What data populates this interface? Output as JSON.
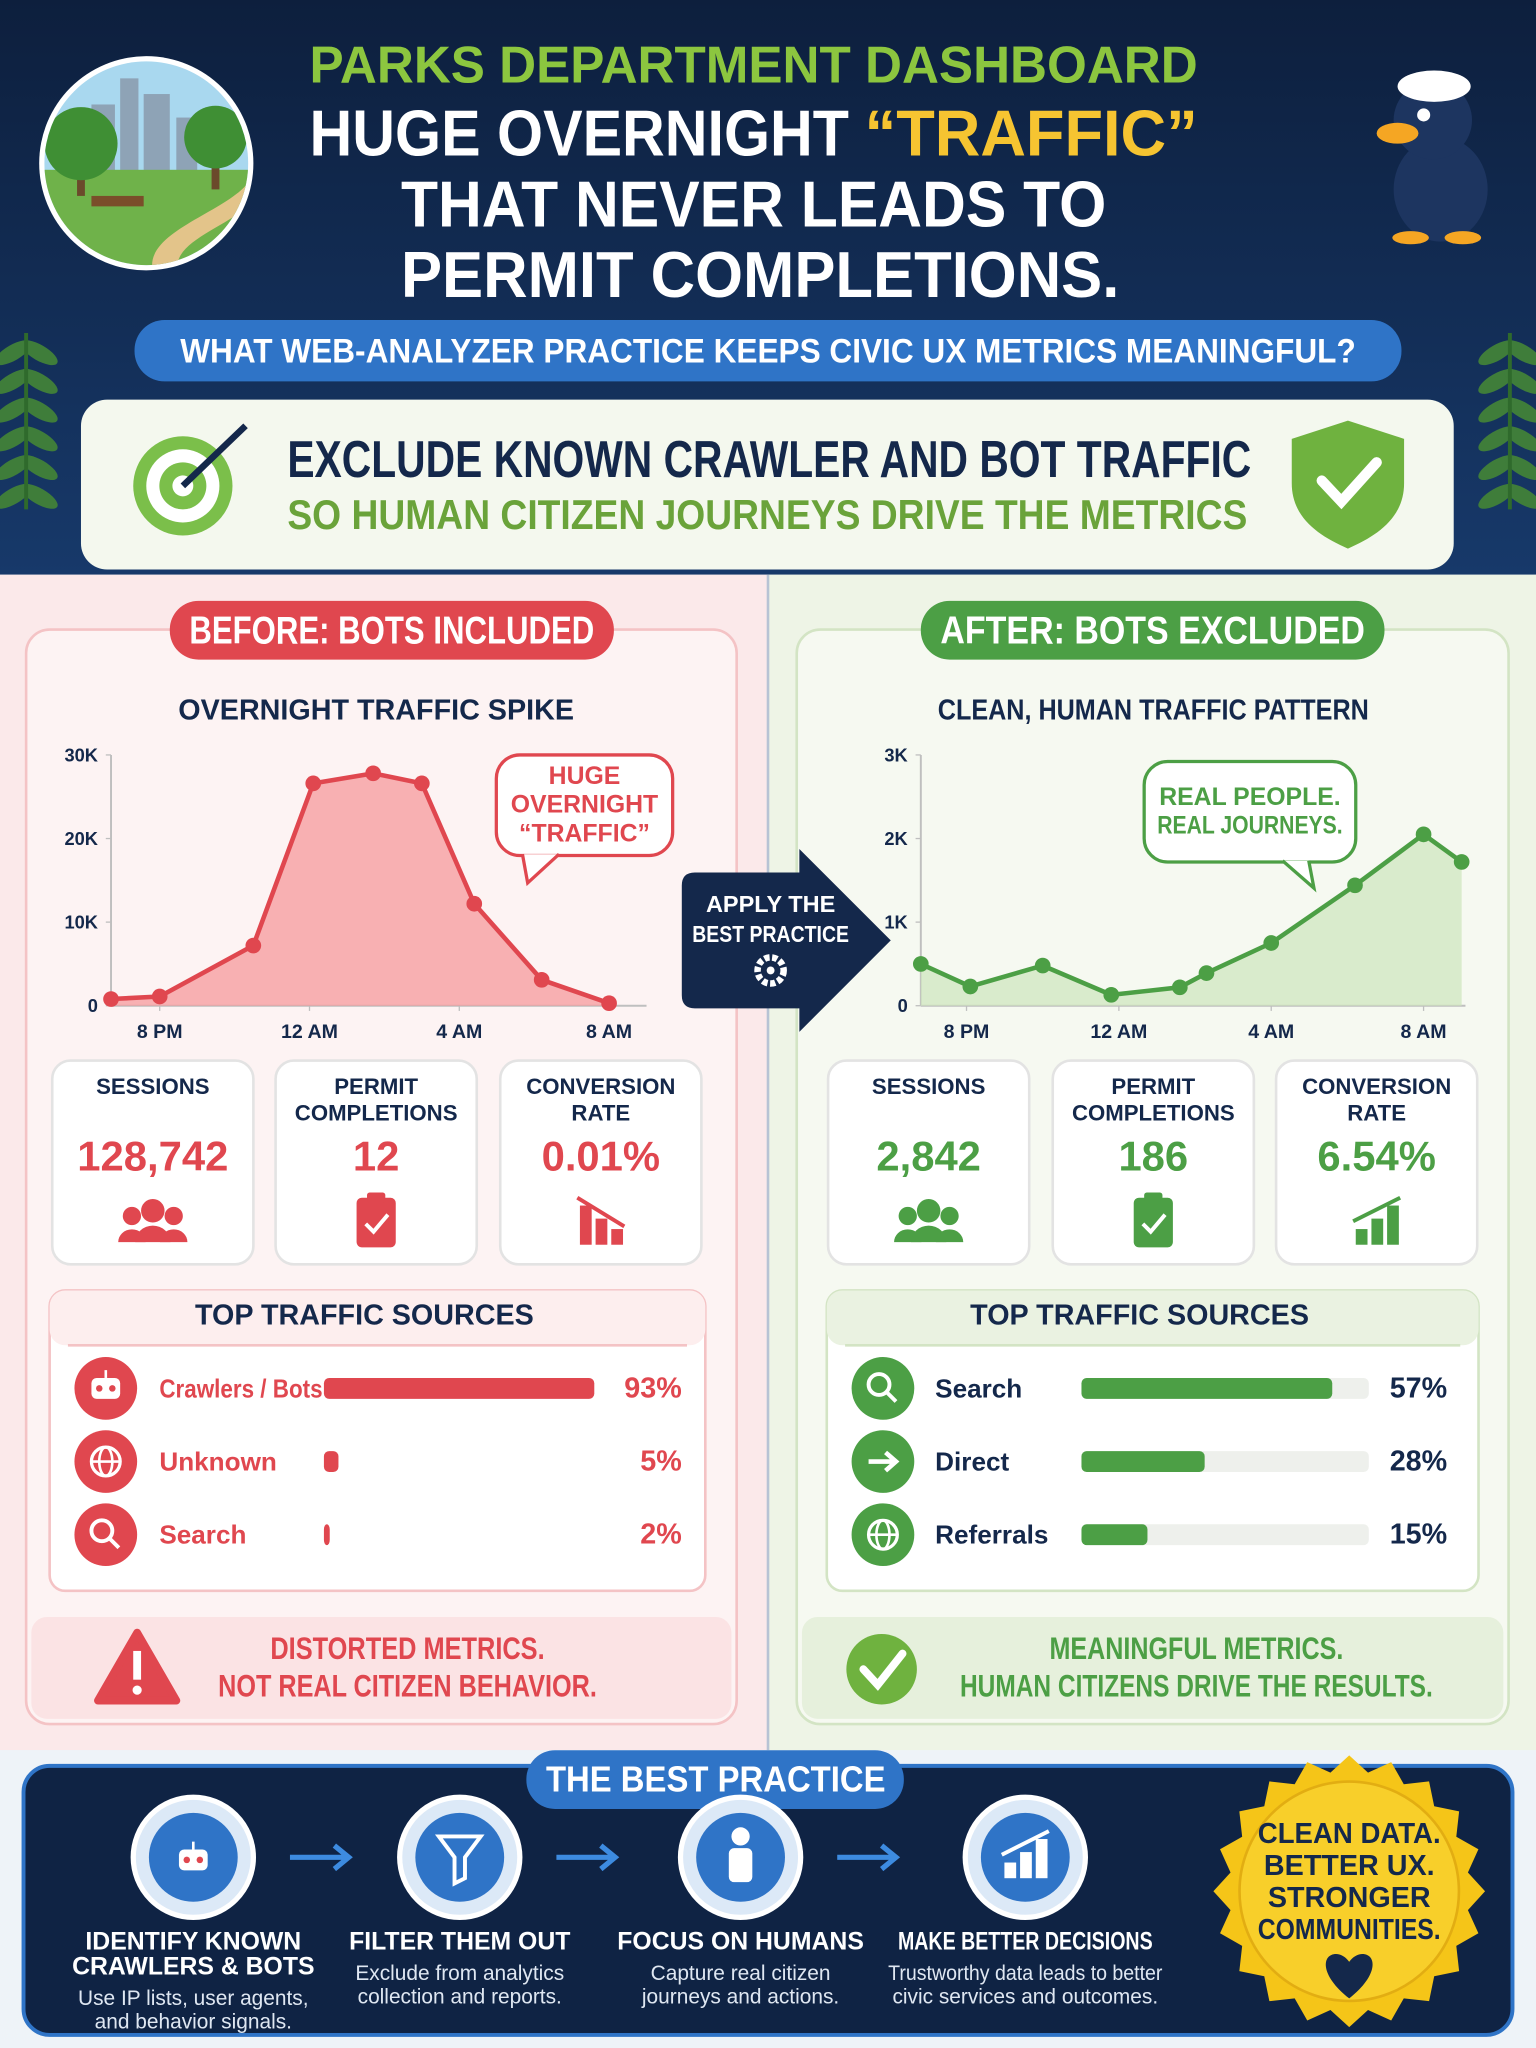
{
  "header": {
    "kicker": "PARKS DEPARTMENT DASHBOARD",
    "title_lines": [
      "HUGE OVERNIGHT",
      "“TRAFFIC”",
      "THAT NEVER LEADS TO",
      "PERMIT COMPLETIONS."
    ]
  },
  "question": "WHAT WEB-ANALYZER PRACTICE KEEPS CIVIC UX METRICS MEANINGFUL?",
  "answer": [
    "EXCLUDE KNOWN CRAWLER AND BOT TRAFFIC",
    "SO HUMAN CITIZEN JOURNEYS DRIVE THE METRICS"
  ],
  "before": {
    "badge": "BEFORE: BOTS INCLUDED",
    "chart_title": "OVERNIGHT TRAFFIC SPIKE",
    "callout": [
      "HUGE",
      "OVERNIGHT",
      "“TRAFFIC”"
    ],
    "chart": {
      "type": "area",
      "color": "#e0474f",
      "x": [
        18.7,
        20,
        22.5,
        24.1,
        25.7,
        27,
        28.4,
        30.2,
        32
      ],
      "values": [
        800,
        1100,
        7200,
        26600,
        27800,
        26600,
        12200,
        3100,
        300
      ],
      "xlim": [
        18.7,
        33
      ],
      "ylim": [
        0,
        30000
      ],
      "xticks": [
        {
          "value": 20,
          "label": "8 PM"
        },
        {
          "value": 24,
          "label": "12 AM"
        },
        {
          "value": 28,
          "label": "4 AM"
        },
        {
          "value": 32,
          "label": "8 AM"
        }
      ],
      "yticks": [
        0,
        {
          "value": 10000,
          "label": "10K"
        },
        {
          "value": 20000,
          "label": "20K"
        },
        {
          "value": 30000,
          "label": "30K"
        }
      ]
    },
    "kpis": [
      {
        "label": [
          "SESSIONS"
        ],
        "value": "128,742"
      },
      {
        "label": [
          "PERMIT",
          "COMPLETIONS"
        ],
        "value": "12"
      },
      {
        "label": [
          "CONVERSION",
          "RATE"
        ],
        "value": "0.01%"
      }
    ],
    "sources": {
      "title": "TOP TRAFFIC SOURCES",
      "names": [
        "Crawlers / Bots",
        "Unknown",
        "Search"
      ],
      "values": [
        93,
        5,
        2
      ],
      "value_labels": [
        "93%",
        "5%",
        "2%"
      ]
    },
    "footer": [
      "DISTORTED METRICS.",
      "NOT REAL CITIZEN BEHAVIOR."
    ]
  },
  "arrow": [
    "APPLY THE",
    "BEST PRACTICE"
  ],
  "after": {
    "badge": "AFTER: BOTS EXCLUDED",
    "chart_title": "CLEAN, HUMAN TRAFFIC PATTERN",
    "callout": [
      "REAL PEOPLE.",
      "REAL JOURNEYS."
    ],
    "chart": {
      "type": "area",
      "color": "#4c9f45",
      "x": [
        18.8,
        20.1,
        22,
        23.8,
        25.6,
        26.3,
        28,
        30.2,
        32,
        33
      ],
      "values": [
        500,
        230,
        480,
        130,
        220,
        390,
        750,
        1440,
        2050,
        1720
      ],
      "xlim": [
        18.8,
        33.1
      ],
      "ylim": [
        0,
        3000
      ],
      "xticks": [
        {
          "value": 20,
          "label": "8 PM"
        },
        {
          "value": 24,
          "label": "12 AM"
        },
        {
          "value": 28,
          "label": "4 AM"
        },
        {
          "value": 32,
          "label": "8 AM"
        }
      ],
      "yticks": [
        0,
        {
          "value": 1000,
          "label": "1K"
        },
        {
          "value": 2000,
          "label": "2K"
        },
        {
          "value": 3000,
          "label": "3K"
        }
      ]
    },
    "kpis": [
      {
        "label": [
          "SESSIONS"
        ],
        "value": "2,842"
      },
      {
        "label": [
          "PERMIT",
          "COMPLETIONS"
        ],
        "value": "186"
      },
      {
        "label": [
          "CONVERSION",
          "RATE"
        ],
        "value": "6.54%"
      }
    ],
    "sources": {
      "title": "TOP TRAFFIC SOURCES",
      "names": [
        "Search",
        "Direct",
        "Referrals"
      ],
      "values": [
        57,
        28,
        15
      ],
      "value_labels": [
        "57%",
        "28%",
        "15%"
      ]
    },
    "footer": [
      "MEANINGFUL METRICS.",
      "HUMAN CITIZENS DRIVE THE RESULTS."
    ]
  },
  "practice": {
    "title": "THE BEST PRACTICE",
    "steps": [
      {
        "title": [
          "IDENTIFY KNOWN",
          "CRAWLERS & BOTS"
        ],
        "desc": [
          "Use IP lists, user agents,",
          "and behavior signals."
        ]
      },
      {
        "title": [
          "FILTER THEM OUT"
        ],
        "desc": [
          "Exclude from analytics",
          "collection and reports."
        ]
      },
      {
        "title": [
          "FOCUS ON HUMANS"
        ],
        "desc": [
          "Capture real citizen",
          "journeys and actions."
        ]
      },
      {
        "title": [
          "MAKE BETTER DECISIONS"
        ],
        "desc": [
          "Trustworthy data leads to better",
          "civic services and outcomes."
        ]
      }
    ],
    "badge": [
      "CLEAN DATA.",
      "BETTER UX.",
      "STRONGER",
      "COMMUNITIES."
    ]
  }
}
